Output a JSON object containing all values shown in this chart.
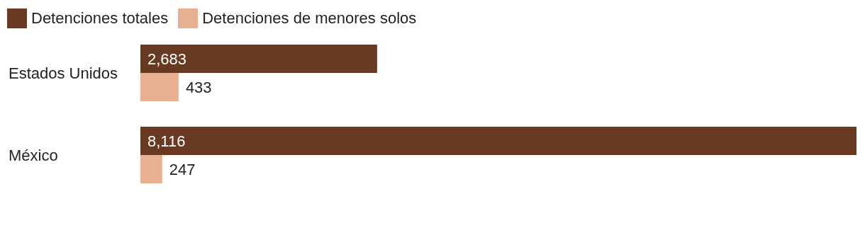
{
  "chart_data": {
    "type": "bar",
    "orientation": "horizontal",
    "categories": [
      "Estados Unidos",
      "México"
    ],
    "series": [
      {
        "name": "Detenciones totales",
        "color": "#693a22",
        "values": [
          2683,
          8116
        ],
        "value_labels": [
          "2,683",
          "8,116"
        ]
      },
      {
        "name": "Detenciones de menores solos",
        "color": "#e8b093",
        "values": [
          433,
          247
        ],
        "value_labels": [
          "433",
          "247"
        ]
      }
    ],
    "legend": "top left",
    "grid": false
  }
}
